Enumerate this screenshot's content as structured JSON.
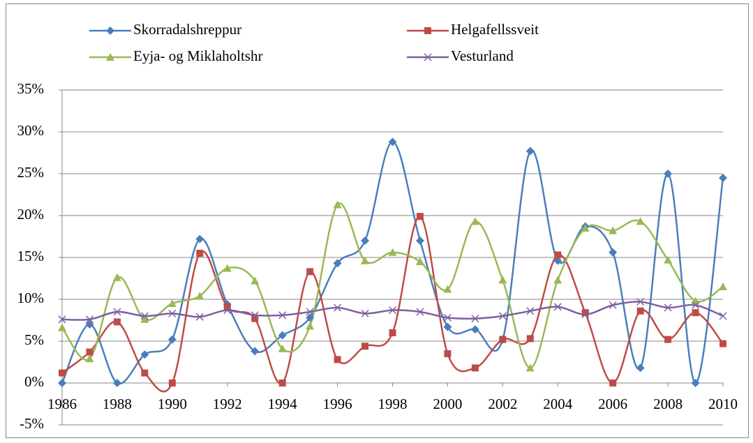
{
  "chart_data": {
    "type": "line",
    "x": [
      1986,
      1987,
      1988,
      1989,
      1990,
      1991,
      1992,
      1993,
      1994,
      1995,
      1996,
      1997,
      1998,
      1999,
      2000,
      2001,
      2002,
      2003,
      2004,
      2005,
      2006,
      2007,
      2008,
      2009,
      2010
    ],
    "xlim": [
      1986,
      2010
    ],
    "xticks": [
      1986,
      1988,
      1990,
      1992,
      1994,
      1996,
      1998,
      2000,
      2002,
      2004,
      2006,
      2008,
      2010
    ],
    "ylim": [
      -5,
      35
    ],
    "yticks": [
      {
        "value": -5,
        "label": "-5%"
      },
      {
        "value": 0,
        "label": "0%"
      },
      {
        "value": 5,
        "label": "5%"
      },
      {
        "value": 10,
        "label": "10%"
      },
      {
        "value": 15,
        "label": "15%"
      },
      {
        "value": 20,
        "label": "20%"
      },
      {
        "value": 25,
        "label": "25%"
      },
      {
        "value": 30,
        "label": "30%"
      },
      {
        "value": 35,
        "label": "35%"
      }
    ],
    "grid": true,
    "smooth": true,
    "legend": "top",
    "series": [
      {
        "name": "Skorradalshreppur",
        "color": "#4a7ebb",
        "marker": "diamond",
        "values": [
          0,
          7,
          0,
          3.4,
          5.2,
          17.2,
          9.4,
          3.8,
          5.7,
          7.8,
          14.3,
          17,
          28.8,
          17,
          6.7,
          6.4,
          5.2,
          27.7,
          14.6,
          18.7,
          15.6,
          1.8,
          25,
          0,
          24.5
        ]
      },
      {
        "name": "Helgafellssveit",
        "color": "#be4b48",
        "marker": "square",
        "values": [
          1.2,
          3.7,
          7.3,
          1.2,
          0,
          15.5,
          9.1,
          7.7,
          0,
          13.3,
          2.8,
          4.4,
          6,
          19.9,
          3.5,
          1.8,
          5.2,
          5.3,
          15.3,
          8.4,
          0,
          8.6,
          5.2,
          8.4,
          4.7
        ]
      },
      {
        "name": "Eyja- og Miklaholtshr",
        "color": "#98b954",
        "marker": "triangle",
        "values": [
          6.6,
          2.9,
          12.6,
          7.6,
          9.5,
          10.4,
          13.7,
          12.2,
          4.1,
          6.8,
          21.3,
          14.6,
          15.6,
          14.5,
          11.2,
          19.3,
          12.3,
          1.8,
          12.3,
          18.5,
          18.2,
          19.3,
          14.7,
          9.8,
          11.5
        ]
      },
      {
        "name": "Vesturland",
        "color": "#7d60a0",
        "marker": "x",
        "values": [
          7.6,
          7.6,
          8.5,
          8,
          8.3,
          7.9,
          8.7,
          8.1,
          8.1,
          8.5,
          9,
          8.3,
          8.7,
          8.5,
          7.8,
          7.7,
          8,
          8.6,
          9.1,
          8.2,
          9.3,
          9.7,
          9,
          9.3,
          8
        ]
      }
    ]
  }
}
